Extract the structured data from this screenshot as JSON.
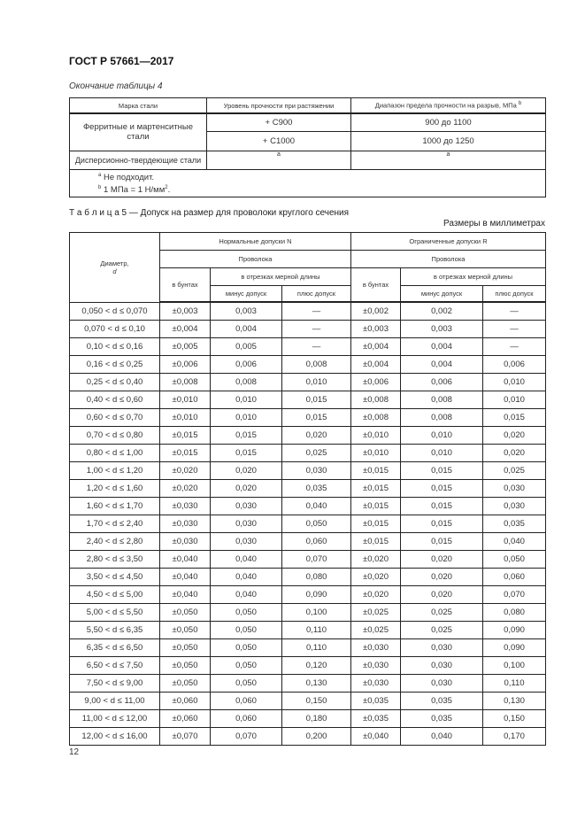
{
  "header": {
    "doc_code": "ГОСТ Р 57661—2017"
  },
  "table4": {
    "caption": "Окончание таблицы 4",
    "headers": [
      "Марка стали",
      "Уровень прочности при растяжении",
      "Диапазон предела прочности на разрыв, МПа"
    ],
    "header_sup": "b",
    "rows": [
      {
        "grade": "Ферритные и мартенситные стали",
        "levels": [
          "+ C900",
          "+ C1000"
        ],
        "ranges": [
          "900 до 1100",
          "1000 до 1250"
        ]
      },
      {
        "grade": "Дисперсионно-твердеющие стали",
        "levels": [
          "a"
        ],
        "ranges": [
          "a"
        ]
      }
    ],
    "footnotes": [
      {
        "mark": "a",
        "text": "Не подходит."
      },
      {
        "mark": "b",
        "text": "1 МПа = 1 Н/мм",
        "sup": "2",
        "end": "."
      }
    ]
  },
  "table5": {
    "caption_prefix": "Т а б л и ц а",
    "caption": " 5 — Допуск на размер для проволоки круглого сечения",
    "units": "Размеры в миллиметрах",
    "headers": {
      "diameter": "Диаметр,",
      "diameter_sym": "d",
      "normal": "Нормальные допуски N",
      "limited": "Ограниченные допуски R",
      "wire": "Проволока",
      "coils": "в бунтах",
      "cut": "в отрезках мерной длины",
      "minus": "минус допуск",
      "plus": "плюс допуск"
    },
    "rows": [
      [
        "0,050 < d ≤ 0,070",
        "±0,003",
        "0,003",
        "—",
        "±0,002",
        "0,002",
        "—"
      ],
      [
        "0,070 < d ≤ 0,10",
        "±0,004",
        "0,004",
        "—",
        "±0,003",
        "0,003",
        "—"
      ],
      [
        "0,10 < d ≤ 0,16",
        "±0,005",
        "0,005",
        "—",
        "±0,004",
        "0,004",
        "—"
      ],
      [
        "0,16 < d ≤ 0,25",
        "±0,006",
        "0,006",
        "0,008",
        "±0,004",
        "0,004",
        "0,006"
      ],
      [
        "0,25 < d ≤ 0,40",
        "±0,008",
        "0,008",
        "0,010",
        "±0,006",
        "0,006",
        "0,010"
      ],
      [
        "0,40 < d ≤ 0,60",
        "±0,010",
        "0,010",
        "0,015",
        "±0,008",
        "0,008",
        "0,010"
      ],
      [
        "0,60 < d ≤ 0,70",
        "±0,010",
        "0,010",
        "0,015",
        "±0,008",
        "0,008",
        "0,015"
      ],
      [
        "0,70 < d ≤ 0,80",
        "±0,015",
        "0,015",
        "0,020",
        "±0,010",
        "0,010",
        "0,020"
      ],
      [
        "0,80 < d ≤ 1,00",
        "±0,015",
        "0,015",
        "0,025",
        "±0,010",
        "0,010",
        "0,020"
      ],
      [
        "1,00 < d ≤ 1,20",
        "±0,020",
        "0,020",
        "0,030",
        "±0,015",
        "0,015",
        "0,025"
      ],
      [
        "1,20 < d ≤ 1,60",
        "±0,020",
        "0,020",
        "0,035",
        "±0,015",
        "0,015",
        "0,030"
      ],
      [
        "1,60 < d ≤ 1,70",
        "±0,030",
        "0,030",
        "0,040",
        "±0,015",
        "0,015",
        "0,030"
      ],
      [
        "1,70 < d ≤ 2,40",
        "±0,030",
        "0,030",
        "0,050",
        "±0,015",
        "0,015",
        "0,035"
      ],
      [
        "2,40 < d ≤ 2,80",
        "±0,030",
        "0,030",
        "0,060",
        "±0,015",
        "0,015",
        "0,040"
      ],
      [
        "2,80 < d ≤ 3,50",
        "±0,040",
        "0,040",
        "0,070",
        "±0,020",
        "0,020",
        "0,050"
      ],
      [
        "3,50 < d ≤ 4,50",
        "±0,040",
        "0,040",
        "0,080",
        "±0,020",
        "0,020",
        "0,060"
      ],
      [
        "4,50 < d ≤ 5,00",
        "±0,040",
        "0,040",
        "0,090",
        "±0,020",
        "0,020",
        "0,070"
      ],
      [
        "5,00 < d ≤ 5,50",
        "±0,050",
        "0,050",
        "0,100",
        "±0,025",
        "0,025",
        "0,080"
      ],
      [
        "5,50 < d ≤ 6,35",
        "±0,050",
        "0,050",
        "0,110",
        "±0,025",
        "0,025",
        "0,090"
      ],
      [
        "6,35 < d ≤ 6,50",
        "±0,050",
        "0,050",
        "0,110",
        "±0,030",
        "0,030",
        "0,090"
      ],
      [
        "6,50 < d ≤ 7,50",
        "±0,050",
        "0,050",
        "0,120",
        "±0,030",
        "0,030",
        "0,100"
      ],
      [
        "7,50 < d ≤ 9,00",
        "±0,050",
        "0,050",
        "0,130",
        "±0,030",
        "0,030",
        "0,110"
      ],
      [
        "9,00 < d ≤ 11,00",
        "±0,060",
        "0,060",
        "0,150",
        "±0,035",
        "0,035",
        "0,130"
      ],
      [
        "11,00 < d ≤ 12,00",
        "±0,060",
        "0,060",
        "0,180",
        "±0,035",
        "0,035",
        "0,150"
      ],
      [
        "12,00 < d ≤ 16,00",
        "±0,070",
        "0,070",
        "0,200",
        "±0,040",
        "0,040",
        "0,170"
      ]
    ]
  },
  "footer": {
    "page_number": "12"
  }
}
